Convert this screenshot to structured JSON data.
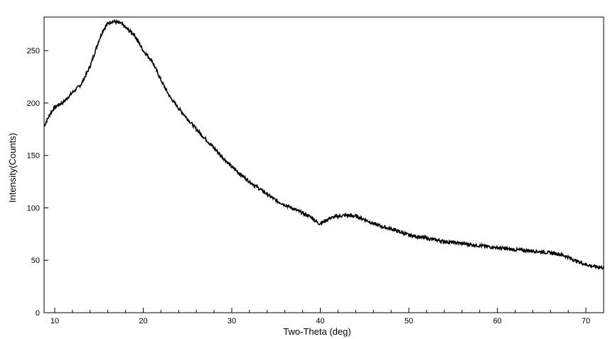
{
  "chart_data": {
    "type": "line",
    "title": "",
    "xlabel": "Two-Theta (deg)",
    "ylabel": "Intensity(Counts)",
    "xlim": [
      8.8,
      72
    ],
    "ylim": [
      0,
      282
    ],
    "x_ticks": [
      10,
      20,
      30,
      40,
      50,
      60,
      70
    ],
    "y_ticks": [
      0,
      50,
      100,
      150,
      200,
      250
    ],
    "grid": false,
    "legend": "none",
    "line_color": "#000000",
    "series": [
      {
        "x": [
          8.8,
          9.5,
          10,
          11,
          12,
          13,
          14,
          15,
          15.5,
          16,
          16.5,
          17,
          17.5,
          18,
          19,
          20,
          21,
          22,
          23,
          24,
          25,
          26,
          27,
          28,
          29,
          30,
          31,
          32,
          33,
          34,
          35,
          36,
          37,
          38,
          39,
          39.8,
          40.5,
          41,
          42,
          43,
          44,
          45,
          46,
          47,
          48,
          50,
          52,
          54,
          56,
          58,
          60,
          62,
          64,
          66,
          67,
          68,
          69,
          70,
          71,
          72
        ],
        "y": [
          178,
          190,
          196,
          201,
          210,
          218,
          235,
          260,
          270,
          276,
          278,
          277,
          276,
          272,
          265,
          250,
          240,
          222,
          206,
          195,
          185,
          175,
          166,
          157,
          148,
          139,
          132,
          125,
          119,
          113,
          107,
          103,
          99,
          95,
          91,
          85,
          87,
          90,
          92,
          93,
          92,
          89,
          85,
          82,
          80,
          74,
          71,
          68,
          66,
          64,
          62,
          60,
          59,
          57,
          56,
          53,
          49,
          46,
          44,
          43
        ]
      }
    ]
  }
}
